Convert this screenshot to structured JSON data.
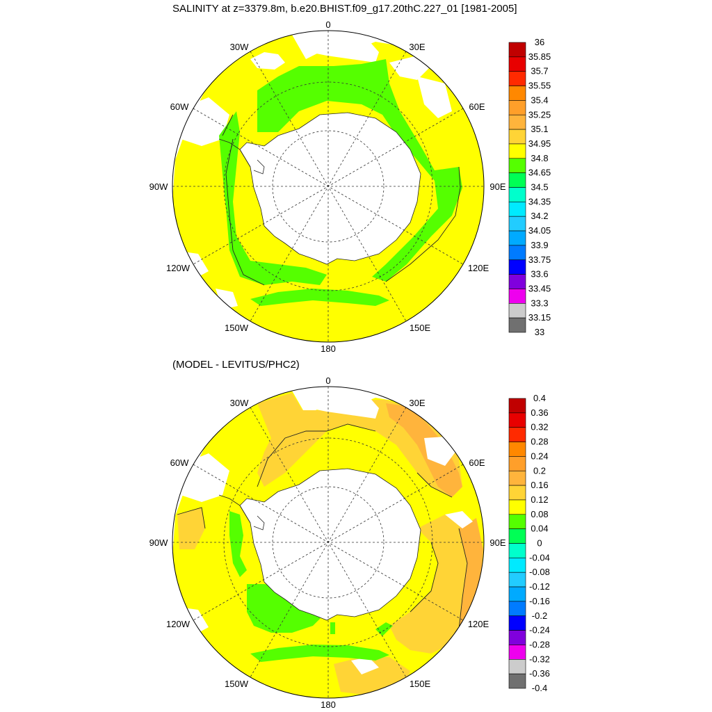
{
  "chart_data": [
    {
      "type": "polar-contour-map",
      "title": "SALINITY at z=3379.8m, b.e20.BHIST.f09_g17.20thC.227_01 [1981-2005]",
      "projection": "south-polar-stereographic",
      "longitude_labels": [
        "0",
        "30E",
        "60E",
        "90E",
        "120E",
        "150E",
        "180",
        "150W",
        "120W",
        "90W",
        "60W",
        "30W"
      ],
      "colorbar": {
        "levels": [
          "36",
          "35.85",
          "35.7",
          "35.55",
          "35.4",
          "35.25",
          "35.1",
          "34.95",
          "34.8",
          "34.65",
          "34.5",
          "34.35",
          "34.2",
          "34.05",
          "33.9",
          "33.75",
          "33.6",
          "33.45",
          "33.3",
          "33.15",
          "33"
        ],
        "colors": [
          "#c00000",
          "#e80000",
          "#ff2a00",
          "#ff8800",
          "#ff9f2a",
          "#ffb43c",
          "#ffd436",
          "#ffff00",
          "#55ff00",
          "#00ff55",
          "#00ffcc",
          "#00eaff",
          "#22ccff",
          "#00aaff",
          "#007bff",
          "#0000ff",
          "#8000dd",
          "#ee00ee",
          "#cccccc",
          "#707070"
        ]
      },
      "regions": [
        {
          "name": "outer-ocean",
          "value_band": "34.8-34.95",
          "color": "#ffff00"
        },
        {
          "name": "circumpolar-band",
          "value_band": "34.65-34.8",
          "color": "#55ff00"
        }
      ]
    },
    {
      "type": "polar-contour-map",
      "title": "(MODEL - LEVITUS/PHC2)",
      "projection": "south-polar-stereographic",
      "longitude_labels": [
        "0",
        "30E",
        "60E",
        "90E",
        "120E",
        "150E",
        "180",
        "150W",
        "120W",
        "90W",
        "60W",
        "30W"
      ],
      "colorbar": {
        "levels": [
          "0.4",
          "0.36",
          "0.32",
          "0.28",
          "0.24",
          "0.2",
          "0.16",
          "0.12",
          "0.08",
          "0.04",
          "0",
          "-0.04",
          "-0.08",
          "-0.12",
          "-0.16",
          "-0.2",
          "-0.24",
          "-0.28",
          "-0.32",
          "-0.36",
          "-0.4"
        ],
        "colors": [
          "#c00000",
          "#e80000",
          "#ff2a00",
          "#ff8800",
          "#ff9f2a",
          "#ffb43c",
          "#ffd436",
          "#ffff00",
          "#55ff00",
          "#00ff55",
          "#00ffcc",
          "#00eaff",
          "#22ccff",
          "#00aaff",
          "#007bff",
          "#0000ff",
          "#8000dd",
          "#ee00ee",
          "#cccccc",
          "#707070"
        ]
      },
      "regions": [
        {
          "name": "mostly-positive",
          "value_band": "0.08-0.12",
          "color": "#ffff00"
        },
        {
          "name": "positive-patches",
          "value_band": "0.12-0.16",
          "color": "#ffd436"
        },
        {
          "name": "strong-positive",
          "value_band": "0.16-0.2",
          "color": "#ffb43c"
        },
        {
          "name": "near-zero-band",
          "value_band": "0.04-0.08",
          "color": "#55ff00"
        }
      ]
    }
  ]
}
